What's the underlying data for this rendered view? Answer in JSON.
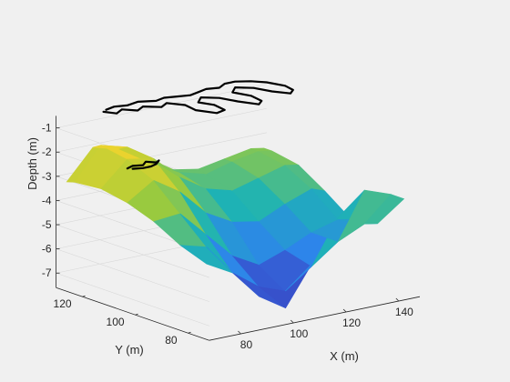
{
  "chart_data": {
    "type": "surface",
    "title": "",
    "xlabel": "X (m)",
    "ylabel": "Y (m)",
    "zlabel": "Depth (m)",
    "xlim": [
      68,
      148
    ],
    "ylim": [
      72,
      130
    ],
    "zlim": [
      -7.6,
      -0.5
    ],
    "x_ticks": [
      80,
      100,
      120,
      140
    ],
    "y_ticks": [
      80,
      100,
      120
    ],
    "z_ticks": [
      -1,
      -2,
      -3,
      -4,
      -5,
      -6,
      -7
    ],
    "colormap": "parula",
    "grid": true,
    "surface": {
      "x_grid": [
        70,
        80,
        90,
        100,
        110,
        120,
        130,
        140,
        145
      ],
      "y_grid": [
        75,
        85,
        95,
        105,
        115,
        125,
        128
      ],
      "depth": [
        [
          -4.6,
          -5.2,
          -6.4,
          -7.1,
          -5.5,
          -3.8,
          -2.9,
          -3.3,
          -3.6
        ],
        [
          -4.2,
          -4.5,
          -5.8,
          -6.6,
          -7.0,
          -6.2,
          -5.4,
          -4.9,
          -5.0
        ],
        [
          -3.6,
          -3.5,
          -4.6,
          -5.7,
          -6.3,
          -5.9,
          -5.4,
          -5.1,
          -5.2
        ],
        [
          -3.2,
          -2.5,
          -3.2,
          -4.3,
          -4.9,
          -5.1,
          -4.6,
          -4.2,
          -4.4
        ],
        [
          -3.0,
          -2.0,
          -2.2,
          -3.2,
          -3.9,
          -4.2,
          -3.9,
          -3.6,
          -3.7
        ],
        [
          -3.1,
          -1.8,
          -2.1,
          -2.9,
          -3.6,
          -3.9,
          -3.6,
          -3.4,
          -3.5
        ],
        [
          -3.2,
          -2.0,
          -2.3,
          -3.0,
          -3.6,
          -3.8,
          -3.6,
          -3.4,
          -3.5
        ]
      ]
    },
    "vehicle_track": {
      "z": -0.5,
      "xy": [
        [
          82,
          126
        ],
        [
          84,
          123
        ],
        [
          88,
          125
        ],
        [
          91,
          122
        ],
        [
          95,
          124
        ],
        [
          99,
          121
        ],
        [
          103,
          123
        ],
        [
          106,
          119
        ],
        [
          105,
          114
        ],
        [
          108,
          109
        ],
        [
          112,
          110
        ],
        [
          113,
          115
        ],
        [
          111,
          119
        ],
        [
          115,
          122
        ],
        [
          119,
          119
        ],
        [
          121,
          114
        ],
        [
          124,
          109
        ],
        [
          127,
          111
        ],
        [
          128,
          116
        ],
        [
          126,
          121
        ],
        [
          130,
          124
        ],
        [
          134,
          121
        ],
        [
          136,
          116
        ],
        [
          139,
          112
        ],
        [
          142,
          114
        ],
        [
          143,
          118
        ],
        [
          141,
          123
        ],
        [
          138,
          126
        ],
        [
          134,
          128
        ],
        [
          130,
          128
        ],
        [
          126,
          126
        ],
        [
          122,
          127
        ],
        [
          118,
          126
        ],
        [
          114,
          125
        ],
        [
          110,
          126
        ],
        [
          106,
          127
        ],
        [
          102,
          126
        ],
        [
          97,
          128
        ],
        [
          92,
          127
        ],
        [
          88,
          128
        ],
        [
          84,
          127
        ]
      ]
    },
    "lower_track": {
      "z": -2.2,
      "xy": [
        [
          77,
          112
        ],
        [
          80,
          113
        ],
        [
          83,
          112
        ],
        [
          86,
          114
        ],
        [
          88,
          112
        ],
        [
          90,
          113
        ],
        [
          87,
          111
        ],
        [
          84,
          110
        ],
        [
          81,
          110
        ],
        [
          78,
          111
        ]
      ]
    }
  }
}
